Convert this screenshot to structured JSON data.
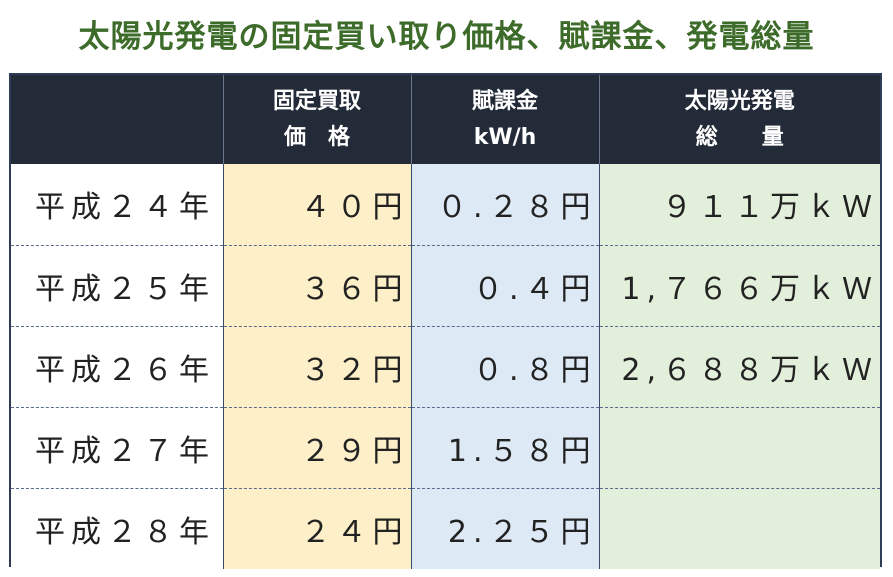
{
  "title": "太陽光発電の固定買い取り価格、賦課金、発電総量",
  "headers": [
    {
      "line1": "",
      "line2": ""
    },
    {
      "line1": "固定買取",
      "line2": "価　格"
    },
    {
      "line1": "賦課金",
      "line2": "kW/h"
    },
    {
      "line1": "太陽光発電",
      "line2": "総　　量"
    }
  ],
  "rows": [
    {
      "year": "平成２４年",
      "price": "４０円",
      "levy": "０.２８円",
      "generation": "９１１万ｋＷ"
    },
    {
      "year": "平成２５年",
      "price": "３６円",
      "levy": "０.４円",
      "generation": "1,７６６万ｋＷ"
    },
    {
      "year": "平成２６年",
      "price": "３２円",
      "levy": "０.８円",
      "generation": "2,６８８万ｋＷ"
    },
    {
      "year": "平成２７年",
      "price": "２９円",
      "levy": "1.５８円",
      "generation": ""
    },
    {
      "year": "平成２８年",
      "price": "２４円",
      "levy": "2.２５円",
      "generation": ""
    }
  ],
  "colors": {
    "title": "#3d6b2a",
    "header_bg": "#232b38",
    "price_bg": "#fdf0c8",
    "levy_bg": "#dde9f5",
    "generation_bg": "#e2efda"
  }
}
